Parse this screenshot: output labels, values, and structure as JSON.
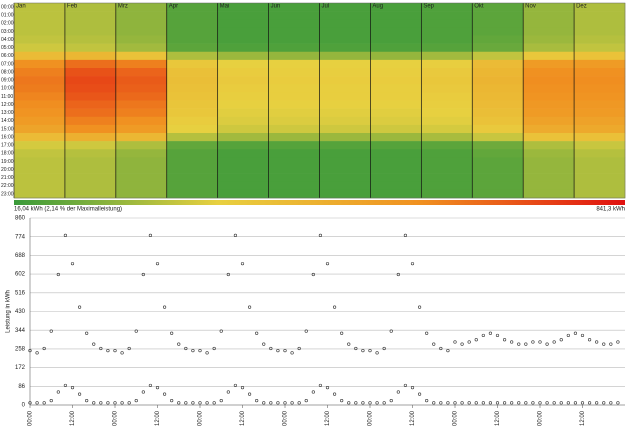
{
  "chart_data": [
    {
      "type": "heatmap",
      "categories": [
        "Jan",
        "Feb",
        "Mrz",
        "Apr",
        "Mai",
        "Jun",
        "Jul",
        "Aug",
        "Sep",
        "Okt",
        "Nov",
        "Dez"
      ],
      "y_categories": [
        "00:00",
        "01:00",
        "02:00",
        "03:00",
        "04:00",
        "05:00",
        "06:00",
        "07:00",
        "08:00",
        "09:00",
        "10:00",
        "11:00",
        "12:00",
        "13:00",
        "14:00",
        "15:00",
        "16:00",
        "17:00",
        "18:00",
        "19:00",
        "20:00",
        "21:00",
        "22:00",
        "23:00"
      ],
      "values": [
        [
          220,
          200,
          150,
          60,
          40,
          40,
          40,
          40,
          50,
          70,
          160,
          200
        ],
        [
          220,
          200,
          150,
          60,
          40,
          40,
          40,
          40,
          50,
          70,
          160,
          200
        ],
        [
          220,
          200,
          150,
          60,
          40,
          40,
          40,
          40,
          50,
          70,
          160,
          200
        ],
        [
          220,
          200,
          150,
          60,
          40,
          40,
          40,
          40,
          50,
          70,
          160,
          200
        ],
        [
          230,
          210,
          160,
          60,
          40,
          40,
          40,
          40,
          50,
          80,
          170,
          210
        ],
        [
          250,
          230,
          180,
          70,
          50,
          50,
          50,
          50,
          60,
          90,
          190,
          230
        ],
        [
          380,
          400,
          350,
          200,
          170,
          160,
          160,
          160,
          180,
          230,
          330,
          350
        ],
        [
          560,
          640,
          600,
          330,
          290,
          290,
          290,
          290,
          300,
          380,
          520,
          520
        ],
        [
          600,
          700,
          660,
          360,
          310,
          300,
          300,
          300,
          320,
          400,
          560,
          560
        ],
        [
          620,
          720,
          680,
          370,
          320,
          310,
          310,
          310,
          330,
          410,
          570,
          570
        ],
        [
          610,
          710,
          670,
          360,
          310,
          300,
          300,
          300,
          320,
          400,
          560,
          560
        ],
        [
          590,
          690,
          650,
          350,
          300,
          300,
          300,
          300,
          310,
          390,
          550,
          550
        ],
        [
          570,
          660,
          620,
          340,
          290,
          290,
          290,
          290,
          300,
          380,
          530,
          530
        ],
        [
          550,
          640,
          600,
          330,
          280,
          280,
          280,
          280,
          290,
          370,
          520,
          520
        ],
        [
          520,
          600,
          560,
          310,
          270,
          270,
          270,
          270,
          280,
          350,
          490,
          490
        ],
        [
          480,
          560,
          520,
          290,
          250,
          250,
          250,
          250,
          260,
          320,
          450,
          460
        ],
        [
          380,
          430,
          400,
          210,
          180,
          170,
          170,
          170,
          190,
          240,
          350,
          360
        ],
        [
          260,
          250,
          200,
          80,
          60,
          60,
          60,
          60,
          70,
          100,
          200,
          240
        ],
        [
          230,
          210,
          160,
          60,
          40,
          40,
          40,
          40,
          50,
          80,
          170,
          210
        ],
        [
          220,
          200,
          150,
          60,
          40,
          40,
          40,
          40,
          50,
          70,
          160,
          200
        ],
        [
          220,
          200,
          150,
          60,
          40,
          40,
          40,
          40,
          50,
          70,
          160,
          200
        ],
        [
          220,
          200,
          150,
          60,
          40,
          40,
          40,
          40,
          50,
          70,
          160,
          200
        ],
        [
          220,
          200,
          150,
          60,
          40,
          40,
          40,
          40,
          50,
          70,
          160,
          200
        ],
        [
          220,
          200,
          150,
          60,
          40,
          40,
          40,
          40,
          50,
          70,
          160,
          200
        ]
      ],
      "colorscale": [
        "#3a9a3a",
        "#e8d040",
        "#f09020",
        "#e01010"
      ],
      "colorbar": {
        "min": 16.04,
        "max": 841.3,
        "min_label": "16,04 kWh (2,14 % der Maximalleistung)",
        "max_label": "841,3 kWh"
      }
    },
    {
      "type": "scatter",
      "y_label": "Leistung in kWh",
      "color": "#333333",
      "ylim": [
        0,
        860
      ],
      "yticks": [
        0,
        86,
        172,
        258,
        344,
        430,
        516,
        602,
        688,
        774,
        860
      ],
      "xlim": [
        0,
        168
      ],
      "xticks": [
        {
          "value": 0,
          "label": "00:00"
        },
        {
          "value": 12,
          "label": "12:00"
        },
        {
          "value": 24,
          "label": "00:00"
        },
        {
          "value": 36,
          "label": "12:00"
        },
        {
          "value": 48,
          "label": "00:00"
        },
        {
          "value": 60,
          "label": "12:00"
        },
        {
          "value": 72,
          "label": "00:00"
        },
        {
          "value": 84,
          "label": "12:00"
        },
        {
          "value": 96,
          "label": "00:00"
        },
        {
          "value": 108,
          "label": "12:00"
        },
        {
          "value": 120,
          "label": "00:00"
        },
        {
          "value": 132,
          "label": "12:00"
        },
        {
          "value": 144,
          "label": "00:00"
        },
        {
          "value": 156,
          "label": "12:00"
        }
      ],
      "grid": true,
      "x": [
        0,
        2,
        4,
        6,
        8,
        10,
        12,
        14,
        16,
        18,
        20,
        22,
        24,
        26,
        28,
        30,
        32,
        34,
        36,
        38,
        40,
        42,
        44,
        46,
        48,
        50,
        52,
        54,
        56,
        58,
        60,
        62,
        64,
        66,
        68,
        70,
        72,
        74,
        76,
        78,
        80,
        82,
        84,
        86,
        88,
        90,
        92,
        94,
        96,
        98,
        100,
        102,
        104,
        106,
        108,
        110,
        112,
        114,
        116,
        118,
        120,
        122,
        124,
        126,
        128,
        130,
        132,
        134,
        136,
        138,
        140,
        142,
        144,
        146,
        148,
        150,
        152,
        154,
        156,
        158,
        160,
        162,
        164,
        166,
        0,
        2,
        4,
        6,
        8,
        10,
        12,
        14,
        16,
        18,
        20,
        22,
        24,
        26,
        28,
        30,
        32,
        34,
        36,
        38,
        40,
        42,
        44,
        46,
        48,
        50,
        52,
        54,
        56,
        58,
        60,
        62,
        64,
        66,
        68,
        70,
        72,
        74,
        76,
        78,
        80,
        82,
        84,
        86,
        88,
        90,
        92,
        94,
        96,
        98,
        100,
        102,
        104,
        106,
        108,
        110,
        112,
        114,
        116,
        118,
        120,
        122,
        124,
        126,
        128,
        130,
        132,
        134,
        136,
        138,
        140,
        142,
        144,
        146,
        148,
        150,
        152,
        154,
        156,
        158,
        160,
        162,
        164,
        166
      ],
      "values": [
        250,
        240,
        260,
        340,
        600,
        780,
        650,
        450,
        330,
        280,
        260,
        250,
        250,
        240,
        260,
        340,
        600,
        780,
        650,
        450,
        330,
        280,
        260,
        250,
        250,
        240,
        260,
        340,
        600,
        780,
        650,
        450,
        330,
        280,
        260,
        250,
        250,
        240,
        260,
        340,
        600,
        780,
        650,
        450,
        330,
        280,
        260,
        250,
        250,
        240,
        260,
        340,
        600,
        780,
        650,
        450,
        330,
        280,
        260,
        250,
        290,
        280,
        290,
        300,
        320,
        330,
        320,
        300,
        290,
        280,
        280,
        290,
        290,
        280,
        290,
        300,
        320,
        330,
        320,
        300,
        290,
        280,
        280,
        290,
        10,
        10,
        10,
        20,
        60,
        90,
        80,
        50,
        20,
        10,
        10,
        10,
        10,
        10,
        10,
        20,
        60,
        90,
        80,
        50,
        20,
        10,
        10,
        10,
        10,
        10,
        10,
        20,
        60,
        90,
        80,
        50,
        20,
        10,
        10,
        10,
        10,
        10,
        10,
        20,
        60,
        90,
        80,
        50,
        20,
        10,
        10,
        10,
        10,
        10,
        10,
        20,
        60,
        90,
        80,
        50,
        20,
        10,
        10,
        10,
        10,
        10,
        10,
        10,
        10,
        10,
        10,
        10,
        10,
        10,
        10,
        10,
        10,
        10,
        10,
        10,
        10,
        10,
        10,
        10,
        10,
        10,
        10,
        10
      ]
    }
  ]
}
